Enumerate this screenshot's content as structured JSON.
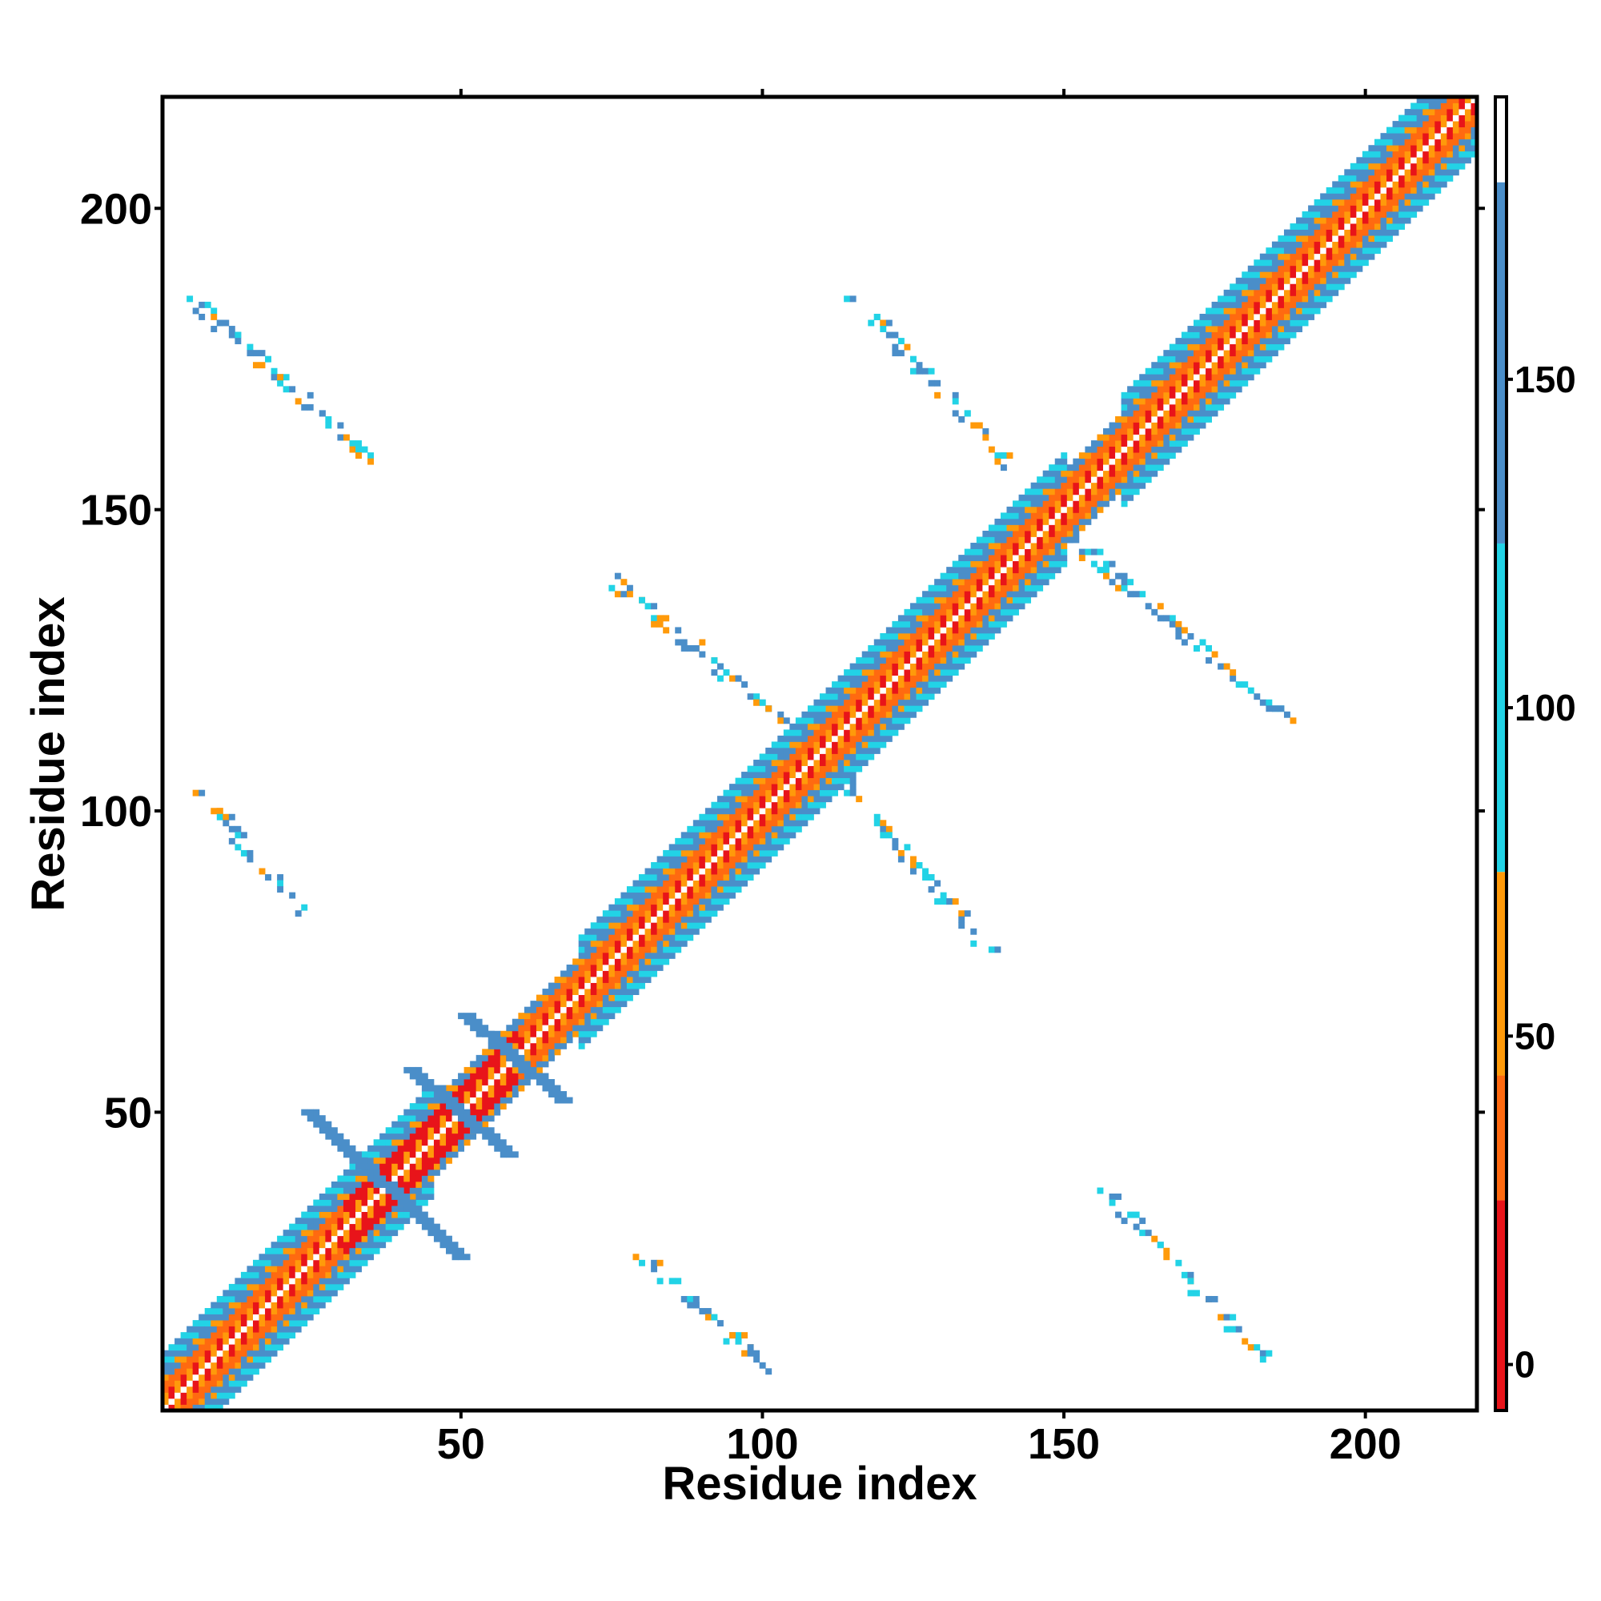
{
  "chart_data": {
    "type": "heatmap",
    "title": "",
    "xlabel": "Residue index",
    "ylabel": "Residue index",
    "xlim": [
      1,
      218
    ],
    "ylim": [
      1,
      218
    ],
    "xticks": [
      50,
      100,
      150,
      200
    ],
    "yticks": [
      50,
      100,
      150,
      200
    ],
    "colorbar": {
      "ticks": [
        0,
        50,
        100,
        150
      ],
      "range": [
        -7,
        193
      ],
      "bands": [
        {
          "from": -7,
          "to": 25,
          "color": "#e8141a"
        },
        {
          "from": 25,
          "to": 44,
          "color": "#ff6a10"
        },
        {
          "from": 44,
          "to": 75,
          "color": "#ff9a0a"
        },
        {
          "from": 75,
          "to": 125,
          "color": "#22d3e6"
        },
        {
          "from": 125,
          "to": 180,
          "color": "#4a8ec9"
        },
        {
          "from": 180,
          "to": 193,
          "color": "#ffffff"
        }
      ]
    },
    "features": [
      {
        "kind": "diagonal",
        "from": 1,
        "to": 218
      },
      {
        "kind": "antiparallel-sheet",
        "x": [
          6,
          35
        ],
        "y": [
          184,
          158
        ]
      },
      {
        "kind": "antiparallel-sheet",
        "x": [
          157,
          185
        ],
        "y": [
          36,
          7
        ]
      },
      {
        "kind": "antiparallel-sheet",
        "x": [
          115,
          143
        ],
        "y": [
          185,
          155
        ]
      },
      {
        "kind": "antiparallel-sheet",
        "x": [
          152,
          187
        ],
        "y": [
          144,
          115
        ]
      },
      {
        "kind": "antiparallel-sheet",
        "x": [
          75,
          103
        ],
        "y": [
          138,
          115
        ]
      },
      {
        "kind": "antiparallel-sheet",
        "x": [
          114,
          138
        ],
        "y": [
          104,
          76
        ]
      },
      {
        "kind": "antiparallel-sheet",
        "x": [
          7,
          25
        ],
        "y": [
          102,
          82
        ]
      },
      {
        "kind": "antiparallel-sheet",
        "x": [
          80,
          101
        ],
        "y": [
          26,
          7
        ]
      },
      {
        "kind": "helix-contact",
        "x": [
          25,
          50
        ],
        "y": [
          50,
          26
        ]
      },
      {
        "kind": "helix-contact",
        "x": [
          42,
          58
        ],
        "y": [
          57,
          43
        ]
      },
      {
        "kind": "helix-contact",
        "x": [
          51,
          67
        ],
        "y": [
          66,
          52
        ]
      }
    ]
  }
}
